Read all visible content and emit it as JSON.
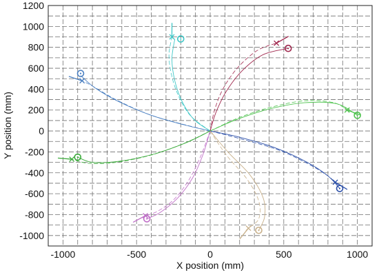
{
  "chart_data": {
    "type": "line",
    "xlabel": "X position (mm)",
    "ylabel": "Y position (mm)",
    "xlim": [
      -1100,
      1100
    ],
    "ylim": [
      -1100,
      1200
    ],
    "xticks": [
      -1000,
      -500,
      0,
      500,
      1000
    ],
    "xtick_labels": [
      "-1000",
      "-500",
      "0",
      "500",
      "1000"
    ],
    "yticks": [
      -1000,
      -800,
      -600,
      -400,
      -200,
      0,
      200,
      400,
      600,
      800,
      1000,
      1200
    ],
    "ytick_labels": [
      "-1000",
      "-800",
      "-600",
      "-400",
      "-200",
      "0",
      "200",
      "400",
      "600",
      "800",
      "1000",
      "1200"
    ],
    "grid": true,
    "grid_x_step": 100,
    "grid_y_step": 100,
    "series": [
      {
        "color": "#4a7fc1",
        "target": [
          -880,
          550
        ],
        "end": [
          -870,
          480
        ],
        "path": [
          [
            0,
            0
          ],
          [
            -180,
            60
          ],
          [
            -400,
            150
          ],
          [
            -620,
            280
          ],
          [
            -780,
            410
          ],
          [
            -880,
            530
          ]
        ],
        "alt_path": [
          [
            0,
            0
          ],
          [
            -200,
            70
          ],
          [
            -420,
            160
          ],
          [
            -640,
            300
          ],
          [
            -800,
            430
          ],
          [
            -870,
            480
          ]
        ]
      },
      {
        "color": "#3fc7c7",
        "target": [
          -200,
          880
        ],
        "end": [
          -260,
          900
        ],
        "path": [
          [
            0,
            0
          ],
          [
            -110,
            110
          ],
          [
            -190,
            280
          ],
          [
            -240,
            480
          ],
          [
            -260,
            690
          ],
          [
            -240,
            880
          ]
        ],
        "alt_path": [
          [
            0,
            0
          ],
          [
            -130,
            140
          ],
          [
            -210,
            320
          ],
          [
            -260,
            520
          ],
          [
            -280,
            720
          ],
          [
            -260,
            900
          ]
        ]
      },
      {
        "color": "#a0284e",
        "target": [
          530,
          790
        ],
        "end": [
          450,
          840
        ],
        "path": [
          [
            0,
            0
          ],
          [
            40,
            180
          ],
          [
            110,
            380
          ],
          [
            220,
            580
          ],
          [
            360,
            730
          ],
          [
            530,
            790
          ]
        ],
        "alt_path": [
          [
            0,
            0
          ],
          [
            30,
            200
          ],
          [
            90,
            410
          ],
          [
            190,
            610
          ],
          [
            320,
            770
          ],
          [
            450,
            840
          ]
        ]
      },
      {
        "color": "#4fc34f",
        "target": [
          1000,
          150
        ],
        "end": [
          930,
          200
        ],
        "path": [
          [
            0,
            0
          ],
          [
            180,
            110
          ],
          [
            400,
            210
          ],
          [
            640,
            270
          ],
          [
            860,
            260
          ],
          [
            1000,
            150
          ]
        ],
        "alt_path": [
          [
            0,
            0
          ],
          [
            200,
            130
          ],
          [
            420,
            230
          ],
          [
            650,
            290
          ],
          [
            840,
            270
          ],
          [
            930,
            200
          ]
        ]
      },
      {
        "color": "#2b4fa8",
        "target": [
          880,
          -550
        ],
        "end": [
          850,
          -490
        ],
        "path": [
          [
            0,
            0
          ],
          [
            200,
            -60
          ],
          [
            440,
            -160
          ],
          [
            660,
            -300
          ],
          [
            800,
            -430
          ],
          [
            880,
            -550
          ]
        ],
        "alt_path": [
          [
            0,
            0
          ],
          [
            220,
            -80
          ],
          [
            460,
            -180
          ],
          [
            660,
            -310
          ],
          [
            790,
            -420
          ],
          [
            850,
            -490
          ]
        ]
      },
      {
        "color": "#c8b08a",
        "target": [
          330,
          -950
        ],
        "end": [
          260,
          -930
        ],
        "path": [
          [
            0,
            0
          ],
          [
            120,
            -200
          ],
          [
            270,
            -420
          ],
          [
            360,
            -640
          ],
          [
            370,
            -820
          ],
          [
            330,
            -950
          ]
        ],
        "alt_path": [
          [
            0,
            0
          ],
          [
            110,
            -230
          ],
          [
            250,
            -460
          ],
          [
            330,
            -670
          ],
          [
            330,
            -840
          ],
          [
            260,
            -930
          ]
        ]
      },
      {
        "color": "#c070c8",
        "target": [
          -430,
          -840
        ],
        "end": [
          -440,
          -810
        ],
        "path": [
          [
            0,
            0
          ],
          [
            -50,
            -230
          ],
          [
            -120,
            -450
          ],
          [
            -220,
            -640
          ],
          [
            -340,
            -780
          ],
          [
            -430,
            -840
          ]
        ],
        "alt_path": [
          [
            0,
            0
          ],
          [
            -70,
            -260
          ],
          [
            -150,
            -480
          ],
          [
            -250,
            -660
          ],
          [
            -360,
            -770
          ],
          [
            -440,
            -810
          ]
        ]
      },
      {
        "color": "#3cab3c",
        "target": [
          -900,
          -250
        ],
        "end": [
          -940,
          -270
        ],
        "path": [
          [
            0,
            0
          ],
          [
            -160,
            -110
          ],
          [
            -380,
            -220
          ],
          [
            -620,
            -290
          ],
          [
            -800,
            -300
          ],
          [
            -900,
            -250
          ]
        ],
        "alt_path": [
          [
            0,
            0
          ],
          [
            -180,
            -120
          ],
          [
            -400,
            -230
          ],
          [
            -640,
            -300
          ],
          [
            -820,
            -310
          ],
          [
            -940,
            -270
          ]
        ]
      }
    ]
  }
}
